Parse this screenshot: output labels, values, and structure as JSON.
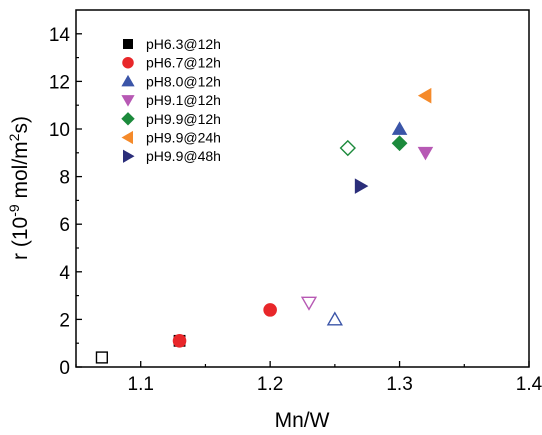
{
  "chart_data": {
    "type": "scatter",
    "xlabel": "Mn/W",
    "ylabel_main": "r (10",
    "ylabel_sup": "-9",
    "ylabel_mid": " mol/m",
    "ylabel_sup2": "2",
    "ylabel_end": "s)",
    "xlim": [
      1.05,
      1.4
    ],
    "ylim": [
      0,
      15
    ],
    "xticks": [
      1.1,
      1.2,
      1.3,
      1.4
    ],
    "xtick_labels": [
      "1.1",
      "1.2",
      "1.3",
      "1.4"
    ],
    "yticks": [
      0,
      2,
      4,
      6,
      8,
      10,
      12,
      14
    ],
    "ytick_labels": [
      "0",
      "2",
      "4",
      "6",
      "8",
      "10",
      "12",
      "14"
    ],
    "grid": false,
    "legend_position": "top-left",
    "series": [
      {
        "name": "pH6.3@12h",
        "marker": "square",
        "color": "#000000",
        "points": [
          {
            "x": 1.13,
            "y": 1.1,
            "filled": true
          },
          {
            "x": 1.07,
            "y": 0.4,
            "filled": false
          }
        ]
      },
      {
        "name": "pH6.7@12h",
        "marker": "circle",
        "color": "#e8272a",
        "points": [
          {
            "x": 1.13,
            "y": 1.1,
            "filled": true
          },
          {
            "x": 1.2,
            "y": 2.4,
            "filled": true
          }
        ]
      },
      {
        "name": "pH8.0@12h",
        "marker": "triangle-up",
        "color": "#3b55a8",
        "points": [
          {
            "x": 1.3,
            "y": 10.0,
            "filled": true
          },
          {
            "x": 1.25,
            "y": 2.0,
            "filled": false
          }
        ]
      },
      {
        "name": "pH9.1@12h",
        "marker": "triangle-down",
        "color": "#b759b4",
        "points": [
          {
            "x": 1.32,
            "y": 9.0,
            "filled": true
          },
          {
            "x": 1.23,
            "y": 2.7,
            "filled": false
          }
        ]
      },
      {
        "name": "pH9.9@12h",
        "marker": "diamond",
        "color": "#1c8a3c",
        "points": [
          {
            "x": 1.3,
            "y": 9.4,
            "filled": true
          },
          {
            "x": 1.26,
            "y": 9.2,
            "filled": false
          }
        ]
      },
      {
        "name": "pH9.9@24h",
        "marker": "triangle-left",
        "color": "#f58a2a",
        "points": [
          {
            "x": 1.32,
            "y": 11.4,
            "filled": true
          }
        ]
      },
      {
        "name": "pH9.9@48h",
        "marker": "triangle-right",
        "color": "#2b2e7a",
        "points": [
          {
            "x": 1.27,
            "y": 7.6,
            "filled": true
          }
        ]
      }
    ]
  }
}
